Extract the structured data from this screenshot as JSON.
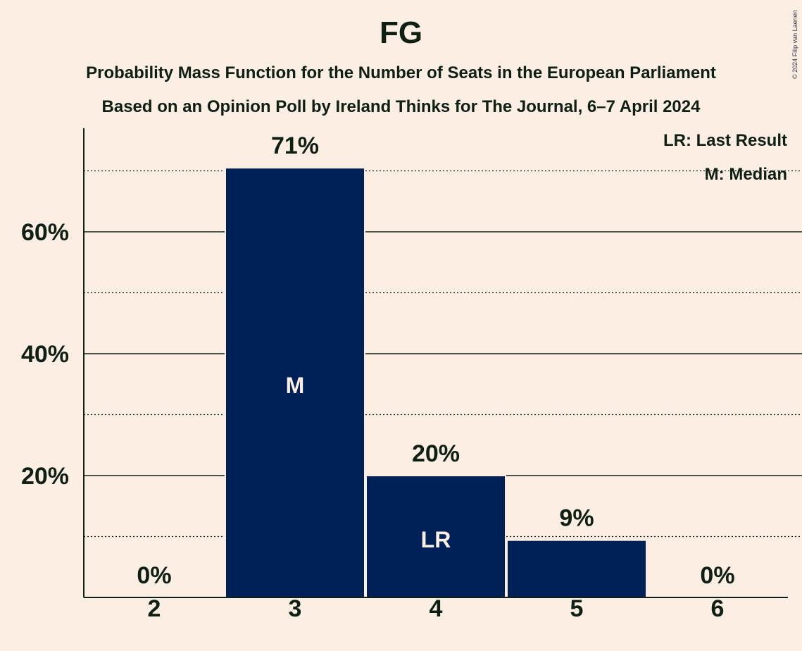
{
  "title": "FG",
  "subtitle_1": "Probability Mass Function for the Number of Seats in the European Parliament",
  "subtitle_2": "Based on an Opinion Poll by Ireland Thinks for The Journal, 6–7 April 2024",
  "copyright": "© 2024 Filip van Laenen",
  "legend": {
    "last_result": "LR: Last Result",
    "median": "M: Median"
  },
  "colors": {
    "background": "#FDEEE4",
    "bar": "#002157",
    "text": "#0e1f14"
  },
  "chart_data": {
    "type": "bar",
    "title": "FG",
    "categories": [
      "2",
      "3",
      "4",
      "5",
      "6"
    ],
    "values": [
      0,
      70.5,
      20.0,
      9.4,
      0
    ],
    "value_labels": [
      "0%",
      "71%",
      "20%",
      "9%",
      "0%"
    ],
    "bar_markers": [
      "",
      "M",
      "LR",
      "",
      ""
    ],
    "y_ticks": [
      20,
      40,
      60
    ],
    "y_tick_labels": [
      "20%",
      "40%",
      "60%"
    ],
    "y_minor_gridlines": [
      10,
      30,
      50,
      70
    ],
    "ylim": [
      0,
      77
    ],
    "grid": true,
    "legend_position": "top-right"
  }
}
